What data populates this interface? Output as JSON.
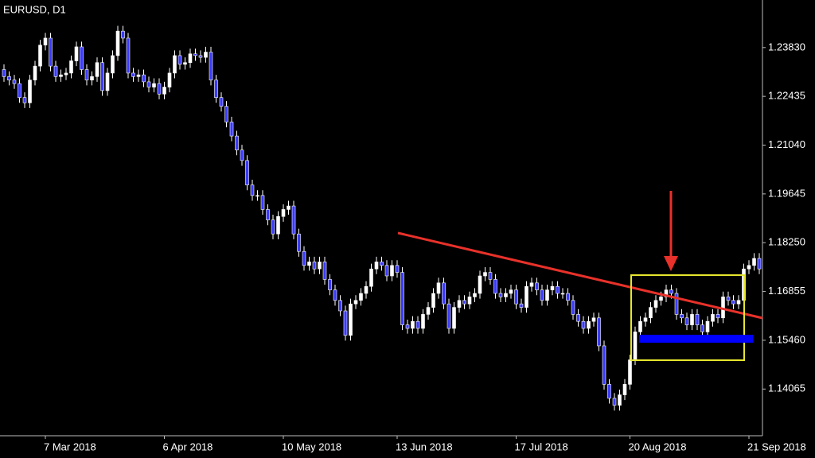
{
  "chart_data": {
    "type": "candlestick",
    "title": "EURUSD, D1",
    "up_color": "#ffffff",
    "down_color": "#3a3aff",
    "wick_color": "#ffffff",
    "categories": [
      null,
      null,
      null,
      null,
      null,
      null,
      null,
      null,
      "7 Mar 2018",
      null,
      null,
      null,
      null,
      null,
      null,
      null,
      null,
      null,
      null,
      null,
      null,
      null,
      null,
      null,
      null,
      null,
      null,
      null,
      null,
      null,
      null,
      "6 Apr 2018",
      null,
      null,
      null,
      null,
      null,
      null,
      null,
      null,
      null,
      null,
      null,
      null,
      null,
      null,
      null,
      null,
      null,
      null,
      null,
      null,
      null,
      null,
      "10 May 2018",
      null,
      null,
      null,
      null,
      null,
      null,
      null,
      null,
      null,
      null,
      null,
      null,
      null,
      null,
      null,
      null,
      null,
      null,
      null,
      null,
      null,
      "13 Jun 2018",
      null,
      null,
      null,
      null,
      null,
      null,
      null,
      null,
      null,
      null,
      null,
      null,
      null,
      null,
      null,
      null,
      null,
      null,
      null,
      null,
      null,
      null,
      "17 Jul 2018",
      null,
      null,
      null,
      null,
      null,
      null,
      null,
      null,
      null,
      null,
      null,
      null,
      null,
      null,
      null,
      null,
      null,
      null,
      null,
      null,
      null,
      "20 Aug 2018",
      null,
      null,
      null,
      null,
      null,
      null,
      null,
      null,
      null,
      null,
      null,
      null,
      null,
      null,
      null,
      null,
      null,
      null,
      null,
      null,
      null,
      null,
      "21 Sep 2018",
      null,
      null
    ],
    "open": [
      1.232,
      1.23,
      1.229,
      1.228,
      1.224,
      1.2225,
      1.229,
      1.233,
      1.239,
      1.241,
      1.233,
      1.23,
      1.2305,
      1.231,
      1.2345,
      1.2385,
      1.232,
      1.229,
      1.23,
      1.234,
      1.226,
      1.231,
      1.236,
      1.243,
      1.241,
      1.231,
      1.23,
      1.2305,
      1.2285,
      1.227,
      1.228,
      1.225,
      1.227,
      1.231,
      1.236,
      1.2335,
      1.234,
      1.2365,
      1.236,
      1.2355,
      1.237,
      1.229,
      1.224,
      1.2215,
      1.217,
      1.213,
      1.209,
      1.206,
      1.199,
      1.196,
      1.196,
      1.192,
      1.189,
      1.185,
      1.19,
      1.192,
      1.193,
      1.185,
      1.18,
      1.176,
      1.177,
      1.175,
      1.177,
      1.172,
      1.169,
      1.166,
      1.163,
      1.156,
      1.165,
      1.166,
      1.168,
      1.17,
      1.175,
      1.177,
      1.176,
      1.173,
      1.176,
      1.174,
      1.159,
      1.158,
      1.16,
      1.158,
      1.162,
      1.164,
      1.168,
      1.171,
      1.165,
      1.158,
      1.164,
      1.166,
      1.165,
      1.167,
      1.168,
      1.173,
      1.174,
      1.172,
      1.168,
      1.167,
      1.168,
      1.169,
      1.165,
      1.164,
      1.17,
      1.171,
      1.169,
      1.166,
      1.169,
      1.17,
      1.168,
      1.168,
      1.166,
      1.162,
      1.16,
      1.158,
      1.16,
      1.161,
      1.153,
      1.142,
      1.138,
      1.136,
      1.139,
      1.142,
      1.149,
      1.157,
      1.16,
      1.161,
      1.164,
      1.166,
      1.167,
      1.169,
      1.168,
      1.162,
      1.161,
      1.159,
      1.162,
      1.159,
      1.157,
      1.16,
      1.162,
      1.161,
      1.167,
      1.166,
      1.165,
      1.166,
      1.175,
      1.176,
      1.178
    ],
    "high": [
      1.2335,
      1.2315,
      1.2305,
      1.2295,
      1.2255,
      1.2305,
      1.2345,
      1.2405,
      1.2425,
      1.2425,
      1.2345,
      1.232,
      1.2325,
      1.236,
      1.24,
      1.24,
      1.2335,
      1.2315,
      1.2355,
      1.2355,
      1.2325,
      1.2375,
      1.2445,
      1.2445,
      1.2425,
      1.2325,
      1.232,
      1.232,
      1.23,
      1.2295,
      1.2295,
      1.2285,
      1.2325,
      1.2375,
      1.2375,
      1.2355,
      1.238,
      1.238,
      1.2375,
      1.2385,
      1.2385,
      1.2305,
      1.2255,
      1.223,
      1.2185,
      1.2145,
      1.2105,
      1.2075,
      1.2005,
      1.1975,
      1.1975,
      1.1935,
      1.1905,
      1.1915,
      1.1935,
      1.1945,
      1.1945,
      1.1865,
      1.1815,
      1.1785,
      1.1785,
      1.1785,
      1.1785,
      1.1735,
      1.1705,
      1.1675,
      1.1645,
      1.1665,
      1.1675,
      1.1695,
      1.1715,
      1.1765,
      1.1785,
      1.1785,
      1.1775,
      1.1775,
      1.1775,
      1.1755,
      1.1605,
      1.1615,
      1.1615,
      1.1635,
      1.1655,
      1.1695,
      1.1725,
      1.1725,
      1.1665,
      1.1655,
      1.1675,
      1.1675,
      1.1685,
      1.1695,
      1.1745,
      1.1755,
      1.1755,
      1.1735,
      1.1695,
      1.1695,
      1.1705,
      1.1705,
      1.1665,
      1.1715,
      1.1725,
      1.1725,
      1.1705,
      1.1705,
      1.1715,
      1.1715,
      1.1695,
      1.1695,
      1.1675,
      1.1635,
      1.1615,
      1.1615,
      1.1625,
      1.1625,
      1.1545,
      1.1435,
      1.1395,
      1.1405,
      1.1435,
      1.1505,
      1.1585,
      1.1615,
      1.1625,
      1.1655,
      1.1675,
      1.1685,
      1.1705,
      1.1705,
      1.1695,
      1.1635,
      1.1625,
      1.1635,
      1.1635,
      1.1605,
      1.1615,
      1.1635,
      1.1635,
      1.1685,
      1.1685,
      1.1675,
      1.1675,
      1.1765,
      1.1775,
      1.1795,
      1.1795
    ],
    "low": [
      1.2285,
      1.2275,
      1.2265,
      1.2225,
      1.221,
      1.221,
      1.2275,
      1.2315,
      1.2375,
      1.2315,
      1.2285,
      1.2285,
      1.229,
      1.2295,
      1.233,
      1.2305,
      1.2275,
      1.2275,
      1.2285,
      1.2245,
      1.2245,
      1.2295,
      1.2345,
      1.2395,
      1.2295,
      1.2285,
      1.2285,
      1.227,
      1.2255,
      1.2255,
      1.2235,
      1.2235,
      1.2255,
      1.2295,
      1.232,
      1.232,
      1.2325,
      1.2345,
      1.234,
      1.234,
      1.2275,
      1.2225,
      1.22,
      1.2155,
      1.2115,
      1.2075,
      1.2045,
      1.1975,
      1.1945,
      1.1945,
      1.1905,
      1.1875,
      1.1835,
      1.1835,
      1.1885,
      1.1905,
      1.1835,
      1.1785,
      1.1745,
      1.1745,
      1.1735,
      1.1735,
      1.1705,
      1.1675,
      1.1645,
      1.1615,
      1.1545,
      1.1545,
      1.1635,
      1.1645,
      1.1665,
      1.1685,
      1.1735,
      1.1745,
      1.1715,
      1.1715,
      1.1725,
      1.1575,
      1.1565,
      1.1565,
      1.1565,
      1.1565,
      1.1605,
      1.1625,
      1.1665,
      1.1635,
      1.1565,
      1.1565,
      1.1625,
      1.1635,
      1.1635,
      1.1655,
      1.1665,
      1.1715,
      1.1705,
      1.1665,
      1.1655,
      1.1655,
      1.1665,
      1.1635,
      1.1625,
      1.1625,
      1.1685,
      1.1675,
      1.1645,
      1.1645,
      1.1675,
      1.1665,
      1.1665,
      1.1645,
      1.1605,
      1.1585,
      1.1565,
      1.1565,
      1.1585,
      1.1515,
      1.1405,
      1.1365,
      1.1345,
      1.1345,
      1.1375,
      1.1405,
      1.1475,
      1.1555,
      1.1585,
      1.1595,
      1.1625,
      1.1645,
      1.1655,
      1.1665,
      1.1605,
      1.1595,
      1.1575,
      1.1575,
      1.1575,
      1.1555,
      1.1555,
      1.1585,
      1.1595,
      1.1595,
      1.1645,
      1.1635,
      1.1635,
      1.1645,
      1.1735,
      1.1745,
      1.1735
    ],
    "close": [
      1.23,
      1.229,
      1.228,
      1.224,
      1.2225,
      1.229,
      1.233,
      1.239,
      1.241,
      1.233,
      1.23,
      1.2305,
      1.231,
      1.2345,
      1.2385,
      1.232,
      1.229,
      1.23,
      1.234,
      1.226,
      1.231,
      1.236,
      1.243,
      1.241,
      1.231,
      1.23,
      1.2305,
      1.2285,
      1.227,
      1.228,
      1.225,
      1.227,
      1.231,
      1.236,
      1.2335,
      1.234,
      1.2365,
      1.236,
      1.2355,
      1.237,
      1.229,
      1.224,
      1.2215,
      1.217,
      1.213,
      1.209,
      1.206,
      1.199,
      1.196,
      1.196,
      1.192,
      1.189,
      1.185,
      1.19,
      1.192,
      1.193,
      1.185,
      1.18,
      1.176,
      1.177,
      1.175,
      1.177,
      1.172,
      1.169,
      1.166,
      1.163,
      1.156,
      1.165,
      1.166,
      1.168,
      1.17,
      1.175,
      1.177,
      1.176,
      1.173,
      1.176,
      1.174,
      1.159,
      1.158,
      1.16,
      1.158,
      1.162,
      1.164,
      1.168,
      1.171,
      1.165,
      1.158,
      1.164,
      1.166,
      1.165,
      1.167,
      1.168,
      1.173,
      1.174,
      1.172,
      1.168,
      1.167,
      1.168,
      1.169,
      1.165,
      1.164,
      1.17,
      1.171,
      1.169,
      1.166,
      1.169,
      1.17,
      1.168,
      1.168,
      1.166,
      1.162,
      1.16,
      1.158,
      1.16,
      1.161,
      1.153,
      1.142,
      1.138,
      1.136,
      1.139,
      1.142,
      1.149,
      1.157,
      1.16,
      1.161,
      1.164,
      1.166,
      1.167,
      1.169,
      1.168,
      1.162,
      1.161,
      1.159,
      1.162,
      1.159,
      1.157,
      1.16,
      1.162,
      1.161,
      1.167,
      1.166,
      1.165,
      1.166,
      1.175,
      1.176,
      1.178,
      1.175
    ],
    "ylim": [
      1.1273,
      1.2519
    ],
    "yticks": [
      {
        "value": 1.2383,
        "label": "1.23830"
      },
      1.22435,
      {
        "value": 1.2104,
        "label": "1.21040"
      },
      1.19645,
      {
        "value": 1.1825,
        "label": "1.18250"
      },
      1.16855,
      {
        "value": 1.1546,
        "label": "1.15460"
      },
      1.14065
    ]
  }
}
